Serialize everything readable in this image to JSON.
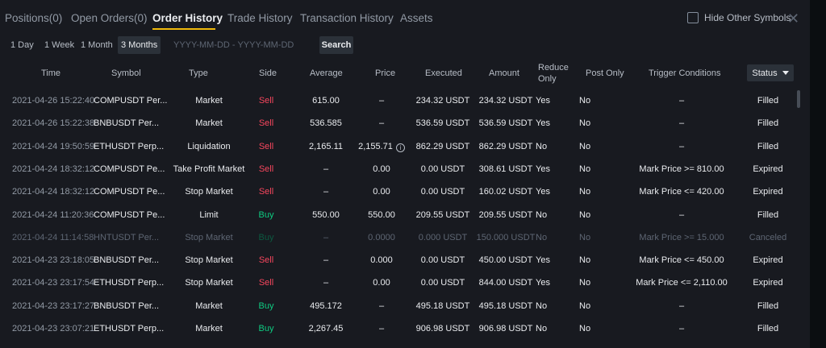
{
  "tabs": [
    {
      "label": "Positions(0)"
    },
    {
      "label": "Open Orders(0)"
    },
    {
      "label": "Order History"
    },
    {
      "label": "Trade History"
    },
    {
      "label": "Transaction History"
    },
    {
      "label": "Assets"
    }
  ],
  "hide_other_label": "Hide Other Symbols",
  "periods": [
    "1 Day",
    "1 Week",
    "1 Month",
    "3 Months"
  ],
  "date_placeholder": "YYYY-MM-DD - YYYY-MM-DD",
  "search_label": "Search",
  "columns": {
    "time": "Time",
    "symbol": "Symbol",
    "type": "Type",
    "side": "Side",
    "average": "Average",
    "price": "Price",
    "executed": "Executed",
    "amount": "Amount",
    "reduce_1": "Reduce",
    "reduce_2": "Only",
    "post_only": "Post Only",
    "trigger": "Trigger Conditions",
    "status": "Status"
  },
  "rows": [
    {
      "time": "2021-04-26 15:22:40",
      "symbol": "COMPUSDT Per...",
      "type": "Market",
      "side": "Sell",
      "average": "615.00",
      "price": "–",
      "executed": "234.32 USDT",
      "amount": "234.32 USDT",
      "reduce": "Yes",
      "post": "No",
      "trigger": "–",
      "status": "Filled"
    },
    {
      "time": "2021-04-26 15:22:38",
      "symbol": "BNBUSDT Per...",
      "type": "Market",
      "side": "Sell",
      "average": "536.585",
      "price": "–",
      "executed": "536.59 USDT",
      "amount": "536.59 USDT",
      "reduce": "Yes",
      "post": "No",
      "trigger": "–",
      "status": "Filled"
    },
    {
      "time": "2021-04-24 19:50:59",
      "symbol": "ETHUSDT Perp...",
      "type": "Liquidation",
      "side": "Sell",
      "average": "2,165.11",
      "price": "2,155.71",
      "executed": "862.29 USDT",
      "amount": "862.29 USDT",
      "reduce": "No",
      "post": "No",
      "trigger": "–",
      "status": "Filled"
    },
    {
      "time": "2021-04-24 18:32:12",
      "symbol": "COMPUSDT Pe...",
      "type": "Take Profit Market",
      "side": "Sell",
      "average": "–",
      "price": "0.00",
      "executed": "0.00 USDT",
      "amount": "308.61 USDT",
      "reduce": "Yes",
      "post": "No",
      "trigger": "Mark Price >= 810.00",
      "status": "Expired"
    },
    {
      "time": "2021-04-24 18:32:12",
      "symbol": "COMPUSDT Pe...",
      "type": "Stop Market",
      "side": "Sell",
      "average": "–",
      "price": "0.00",
      "executed": "0.00 USDT",
      "amount": "160.02 USDT",
      "reduce": "Yes",
      "post": "No",
      "trigger": "Mark Price <= 420.00",
      "status": "Expired"
    },
    {
      "time": "2021-04-24 11:20:36",
      "symbol": "COMPUSDT Pe...",
      "type": "Limit",
      "side": "Buy",
      "average": "550.00",
      "price": "550.00",
      "executed": "209.55 USDT",
      "amount": "209.55 USDT",
      "reduce": "No",
      "post": "No",
      "trigger": "–",
      "status": "Filled"
    },
    {
      "time": "2021-04-24 11:14:58",
      "symbol": "HNTUSDT Per...",
      "type": "Stop Market",
      "side": "Buy",
      "average": "–",
      "price": "0.0000",
      "executed": "0.000 USDT",
      "amount": "150.000 USDT",
      "reduce": "No",
      "post": "No",
      "trigger": "Mark Price >= 15.000",
      "status": "Canceled"
    },
    {
      "time": "2021-04-23 23:18:05",
      "symbol": "BNBUSDT Per...",
      "type": "Stop Market",
      "side": "Sell",
      "average": "–",
      "price": "0.000",
      "executed": "0.00 USDT",
      "amount": "450.00 USDT",
      "reduce": "Yes",
      "post": "No",
      "trigger": "Mark Price <= 450.00",
      "status": "Expired"
    },
    {
      "time": "2021-04-23 23:17:54",
      "symbol": "ETHUSDT Perp...",
      "type": "Stop Market",
      "side": "Sell",
      "average": "–",
      "price": "0.00",
      "executed": "0.00 USDT",
      "amount": "844.00 USDT",
      "reduce": "Yes",
      "post": "No",
      "trigger": "Mark Price <= 2,110.00",
      "status": "Expired"
    },
    {
      "time": "2021-04-23 23:17:27",
      "symbol": "BNBUSDT Per...",
      "type": "Market",
      "side": "Buy",
      "average": "495.172",
      "price": "–",
      "executed": "495.18 USDT",
      "amount": "495.18 USDT",
      "reduce": "No",
      "post": "No",
      "trigger": "–",
      "status": "Filled"
    },
    {
      "time": "2021-04-23 23:07:21",
      "symbol": "ETHUSDT Perp...",
      "type": "Market",
      "side": "Buy",
      "average": "2,267.45",
      "price": "–",
      "executed": "906.98 USDT",
      "amount": "906.98 USDT",
      "reduce": "No",
      "post": "No",
      "trigger": "–",
      "status": "Filled"
    }
  ],
  "colors": {
    "accent": "#f0b90b",
    "sell": "#f6465d",
    "buy": "#0ecb81",
    "background": "#181a20"
  },
  "icons": {
    "close": "close-icon",
    "info": "info-icon",
    "status_dropdown": "chevron-down-icon"
  }
}
